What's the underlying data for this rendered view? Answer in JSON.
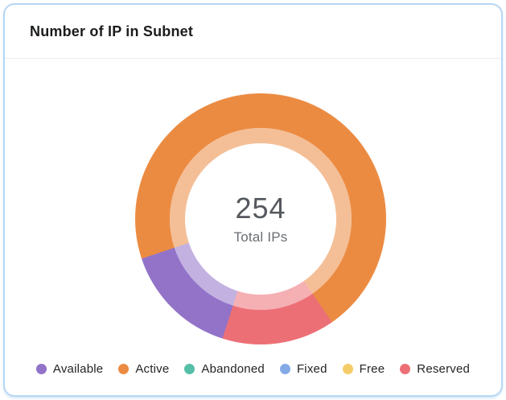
{
  "card": {
    "title": "Number of IP in Subnet"
  },
  "chart_data": {
    "type": "donut",
    "title": "Number of IP in Subnet",
    "center_value": "254",
    "center_label": "Total IPs",
    "total": 254,
    "start_angle_deg": 197.7,
    "inner_ring_opacity": 0.55,
    "legend_position": "bottom",
    "series": [
      {
        "name": "Available",
        "value": 38,
        "color": "#9273C8"
      },
      {
        "name": "Active",
        "value": 179,
        "color": "#EB8B42"
      },
      {
        "name": "Abandoned",
        "value": 0,
        "color": "#56BFA7"
      },
      {
        "name": "Fixed",
        "value": 0,
        "color": "#84AAE6"
      },
      {
        "name": "Free",
        "value": 0,
        "color": "#F5CD68"
      },
      {
        "name": "Reserved",
        "value": 37,
        "color": "#ED6F76"
      }
    ]
  }
}
